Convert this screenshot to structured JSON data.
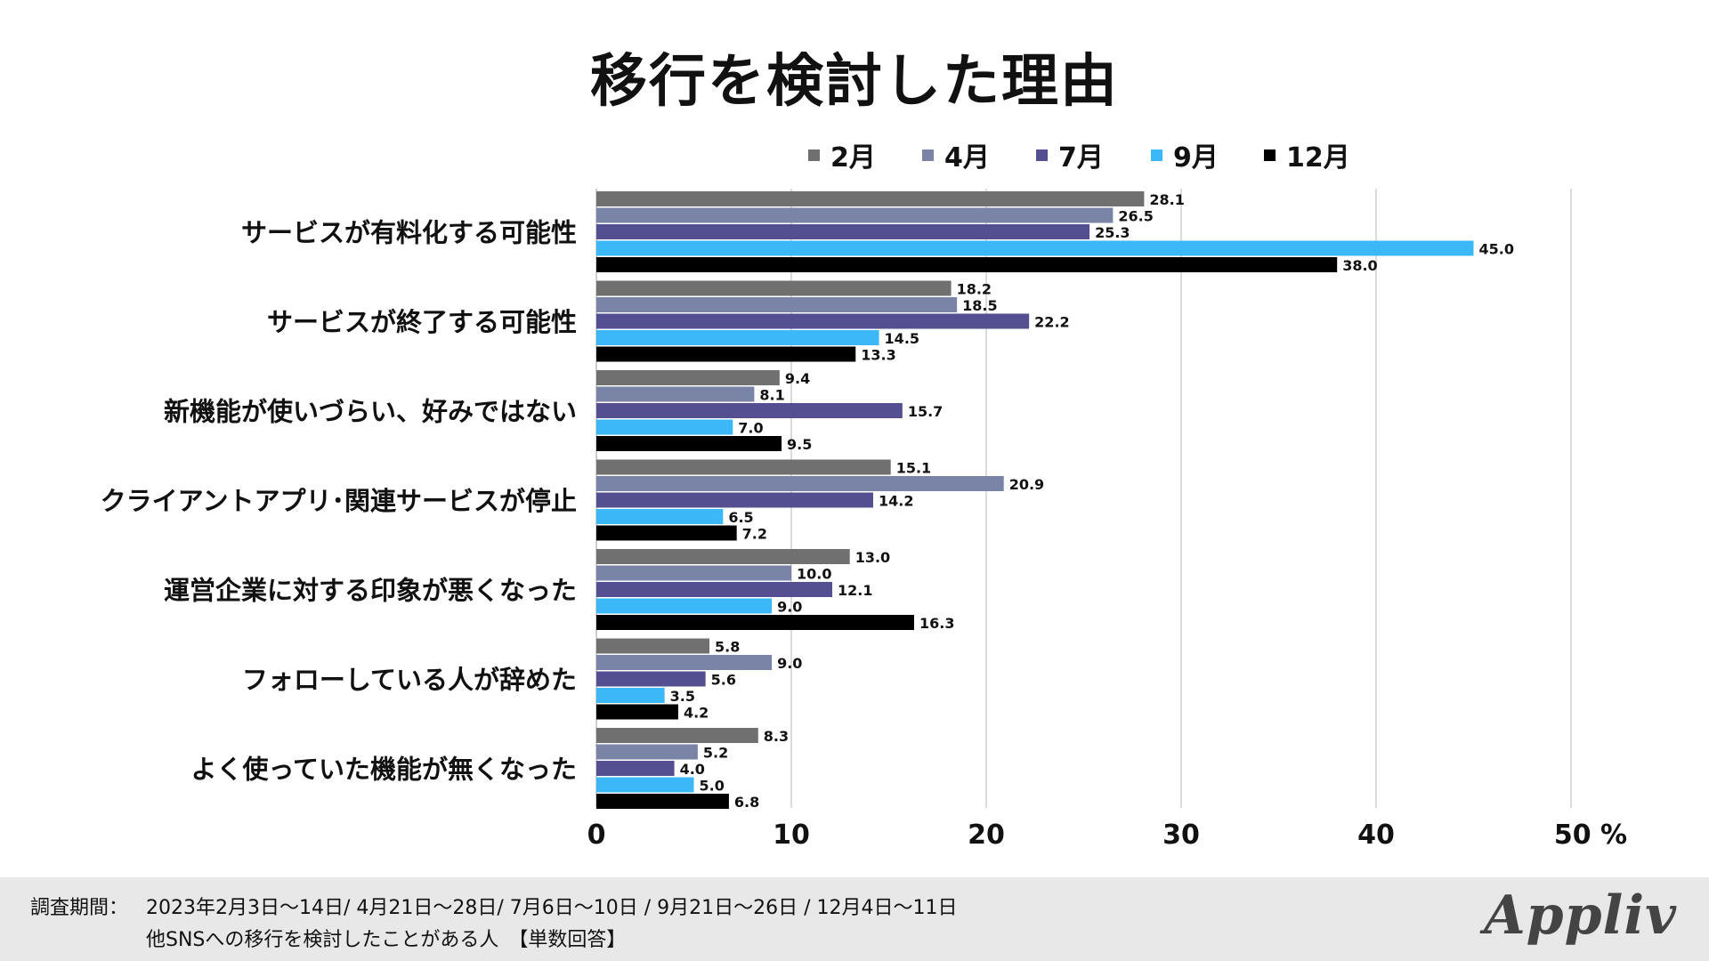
{
  "chart_data": {
    "type": "bar",
    "orientation": "horizontal",
    "title": "移行を検討した理由",
    "categories": [
      "サービスが有料化する可能性",
      "サービスが終了する可能性",
      "新機能が使いづらい、好みではない",
      "クライアントアプリ･関連サービスが停止",
      "運営企業に対する印象が悪くなった",
      "フォローしている人が辞めた",
      "よく使っていた機能が無くなった"
    ],
    "series": [
      {
        "name": "2月",
        "color": "#707070",
        "values": [
          28.1,
          18.2,
          9.4,
          15.1,
          13.0,
          5.8,
          8.3
        ]
      },
      {
        "name": "4月",
        "color": "#7a84a6",
        "values": [
          26.5,
          18.5,
          8.1,
          20.9,
          10.0,
          9.0,
          5.2
        ]
      },
      {
        "name": "7月",
        "color": "#534f91",
        "values": [
          25.3,
          22.2,
          15.7,
          14.2,
          12.1,
          5.6,
          4.0
        ]
      },
      {
        "name": "9月",
        "color": "#3bb8f7",
        "values": [
          45.0,
          14.5,
          7.0,
          6.5,
          9.0,
          3.5,
          5.0
        ]
      },
      {
        "name": "12月",
        "color": "#000000",
        "values": [
          38.0,
          13.3,
          9.5,
          7.2,
          16.3,
          4.2,
          6.8
        ]
      }
    ],
    "xlim": [
      0,
      50
    ],
    "xticks": [
      0,
      10,
      20,
      30,
      40,
      50
    ],
    "xunit": "%",
    "grid": true,
    "legend_position": "top"
  },
  "footer": {
    "label": "調査期間：",
    "period": "2023年2月3日〜14日/  4月21日〜28日/ 7月6日〜10日 / 9月21日〜26日 / 12月4日〜11日",
    "target": "他SNSへの移行を検討したことがある人　【単数回答】"
  },
  "brand": {
    "logo_text": "Appliv"
  }
}
